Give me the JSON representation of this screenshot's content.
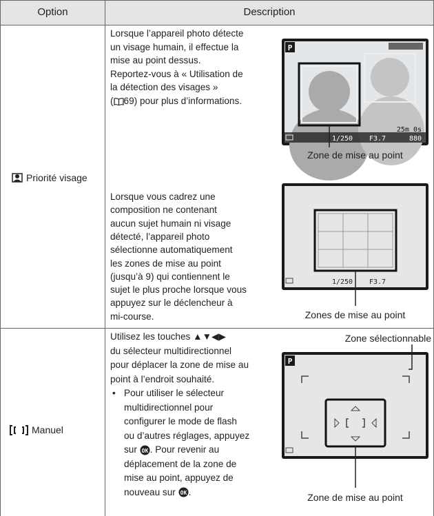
{
  "table": {
    "header": {
      "option": "Option",
      "description": "Description"
    },
    "rows": [
      {
        "option": "Priorité visage",
        "cells": [
          {
            "lines": [
              "Lorsque l’appareil photo détecte",
              "un visage humain, il effectue la",
              "mise au point dessus.",
              "Reportez-vous à « Utilisation de",
              "la détection des visages »",
              [
                "(",
                "69) pour plus d’informations."
              ]
            ],
            "screen": {
              "mode": "P",
              "time": "25m 0s",
              "shots": "880",
              "shutter": "1/250",
              "aperture": "F3.7"
            },
            "caption": "Zone de mise au point"
          },
          {
            "lines": [
              "Lorsque vous cadrez une",
              "composition ne contenant",
              "aucun sujet humain ni visage",
              "détecté, l’appareil photo",
              "sélectionne automatiquement",
              "les zones de mise au point",
              "(jusqu’à 9) qui contiennent le",
              "sujet le plus proche lorsque vous",
              "appuyez sur le déclencheur à",
              "mi-course."
            ],
            "screen": {
              "shutter": "1/250",
              "aperture": "F3.7"
            },
            "caption": "Zones de mise au point"
          }
        ]
      },
      {
        "option": "Manuel",
        "cells": [
          {
            "lines": [
              "Utilisez les touches ▲▼◀▶",
              "du sélecteur multidirectionnel",
              "pour déplacer la zone de mise au",
              "point à l’endroit souhaité."
            ],
            "bullet": [
              "Pour utiliser le sélecteur",
              "multidirectionnel pour",
              "configurer le mode de flash",
              "ou d’autres réglages, appuyez",
              [
                "sur ",
                ". Pour revenir au"
              ],
              "déplacement de la zone de",
              "mise au point, appuyez de",
              [
                "nouveau sur ",
                "."
              ]
            ],
            "screen": {
              "mode": "P"
            },
            "caption_top": "Zone sélectionnable",
            "caption": "Zone de mise au point"
          }
        ]
      }
    ]
  }
}
